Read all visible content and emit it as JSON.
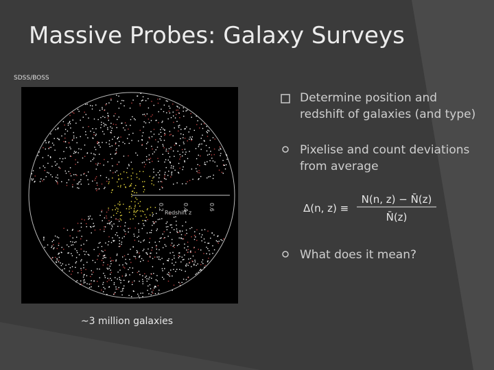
{
  "slide": {
    "title": "Massive Probes: Galaxy Surveys",
    "source_label": "SDSS/BOSS",
    "figure": {
      "axis_label": "Redshift z",
      "ticks": [
        "0.2",
        "0.4",
        "0.6"
      ]
    },
    "caption": "~3 million galaxies",
    "bullets": [
      {
        "lines": [
          "Determine position and",
          "redshift of galaxies (and type)"
        ]
      },
      {
        "lines": [
          "Pixelise and count deviations",
          "from average"
        ]
      },
      {
        "lines": [
          "What does it mean?"
        ]
      }
    ],
    "formula": {
      "lhs": "Δ(n, z) ≡",
      "numerator": "N(n, z) − N̄(z)",
      "denominator": "N̄(z)"
    }
  }
}
